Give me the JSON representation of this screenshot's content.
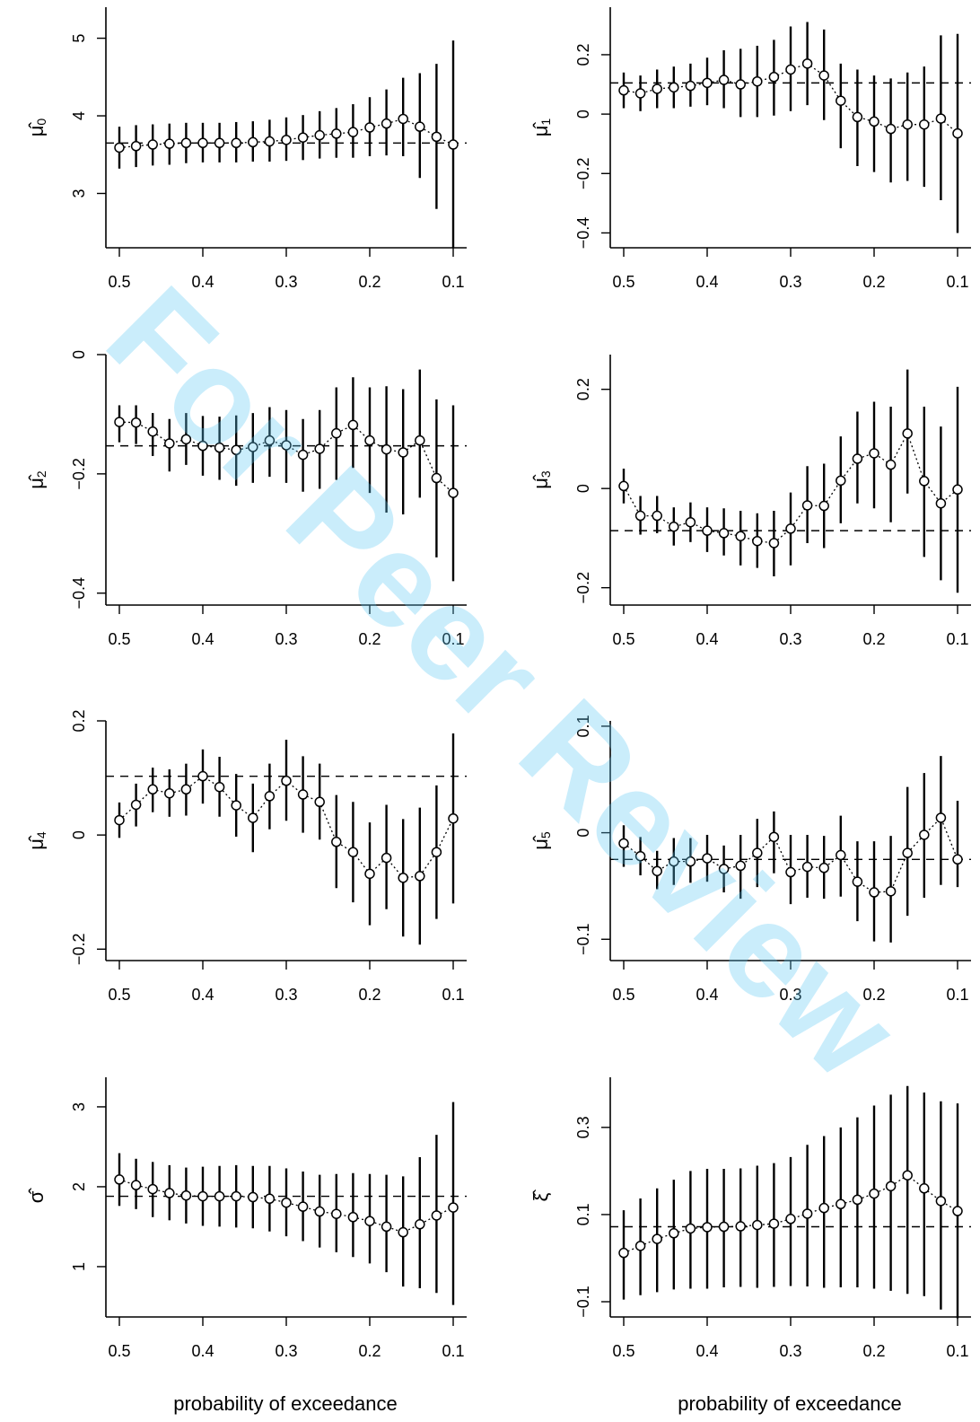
{
  "watermark": "For Peer Review",
  "x_axis_label": "probability of exceedance",
  "x_ticks": [
    0.5,
    0.4,
    0.3,
    0.2,
    0.1
  ],
  "chart_data": [
    {
      "type": "scatter",
      "id": "mu0",
      "ylabel_main": "μ̂",
      "ylabel_sub": "0",
      "xlabel": "",
      "xlim": [
        0.5,
        0.1
      ],
      "ylim": [
        2.3,
        5.4
      ],
      "yticks": [
        3,
        4,
        5
      ],
      "hline": 3.65,
      "x": [
        0.5,
        0.48,
        0.46,
        0.44,
        0.42,
        0.4,
        0.38,
        0.36,
        0.34,
        0.32,
        0.3,
        0.28,
        0.26,
        0.24,
        0.22,
        0.2,
        0.18,
        0.16,
        0.14,
        0.12,
        0.1
      ],
      "y": [
        3.59,
        3.61,
        3.63,
        3.64,
        3.65,
        3.65,
        3.65,
        3.65,
        3.66,
        3.67,
        3.69,
        3.72,
        3.75,
        3.77,
        3.79,
        3.85,
        3.9,
        3.96,
        3.86,
        3.73,
        3.63
      ],
      "lo": [
        3.32,
        3.34,
        3.36,
        3.37,
        3.39,
        3.4,
        3.4,
        3.4,
        3.41,
        3.41,
        3.42,
        3.43,
        3.45,
        3.46,
        3.46,
        3.48,
        3.49,
        3.48,
        3.2,
        2.8,
        2.3
      ],
      "hi": [
        3.86,
        3.88,
        3.89,
        3.9,
        3.91,
        3.91,
        3.91,
        3.92,
        3.93,
        3.95,
        3.98,
        4.01,
        4.06,
        4.1,
        4.15,
        4.24,
        4.34,
        4.49,
        4.55,
        4.67,
        4.97
      ]
    },
    {
      "type": "scatter",
      "id": "mu1",
      "ylabel_main": "μ̂",
      "ylabel_sub": "1",
      "xlabel": "",
      "xlim": [
        0.5,
        0.1
      ],
      "ylim": [
        -0.45,
        0.36
      ],
      "yticks": [
        -0.4,
        -0.2,
        0,
        0.2
      ],
      "hline": 0.105,
      "x": [
        0.5,
        0.48,
        0.46,
        0.44,
        0.42,
        0.4,
        0.38,
        0.36,
        0.34,
        0.32,
        0.3,
        0.28,
        0.26,
        0.24,
        0.22,
        0.2,
        0.18,
        0.16,
        0.14,
        0.12,
        0.1
      ],
      "y": [
        0.08,
        0.07,
        0.085,
        0.09,
        0.095,
        0.105,
        0.115,
        0.1,
        0.11,
        0.125,
        0.15,
        0.17,
        0.13,
        0.045,
        -0.01,
        -0.025,
        -0.05,
        -0.035,
        -0.035,
        -0.015,
        -0.065
      ],
      "lo": [
        0.02,
        0.01,
        0.02,
        0.02,
        0.025,
        0.03,
        0.02,
        -0.01,
        -0.01,
        -0.005,
        0.01,
        0.03,
        -0.02,
        -0.115,
        -0.175,
        -0.195,
        -0.23,
        -0.225,
        -0.245,
        -0.29,
        -0.4
      ],
      "hi": [
        0.14,
        0.13,
        0.15,
        0.16,
        0.17,
        0.19,
        0.215,
        0.22,
        0.23,
        0.25,
        0.295,
        0.31,
        0.285,
        0.17,
        0.15,
        0.13,
        0.12,
        0.14,
        0.16,
        0.265,
        0.27
      ]
    },
    {
      "type": "scatter",
      "id": "mu2",
      "ylabel_main": "μ̂",
      "ylabel_sub": "2",
      "xlabel": "",
      "xlim": [
        0.5,
        0.1
      ],
      "ylim": [
        -0.42,
        0.0
      ],
      "yticks": [
        -0.4,
        -0.2,
        0
      ],
      "hline": -0.153,
      "x": [
        0.5,
        0.48,
        0.46,
        0.44,
        0.42,
        0.4,
        0.38,
        0.36,
        0.34,
        0.32,
        0.3,
        0.28,
        0.26,
        0.24,
        0.22,
        0.2,
        0.18,
        0.16,
        0.14,
        0.12,
        0.1
      ],
      "y": [
        -0.113,
        -0.114,
        -0.129,
        -0.149,
        -0.142,
        -0.153,
        -0.156,
        -0.16,
        -0.155,
        -0.144,
        -0.152,
        -0.168,
        -0.158,
        -0.132,
        -0.118,
        -0.144,
        -0.159,
        -0.164,
        -0.144,
        -0.207,
        -0.232
      ],
      "lo": [
        -0.147,
        -0.15,
        -0.17,
        -0.196,
        -0.185,
        -0.203,
        -0.21,
        -0.22,
        -0.215,
        -0.205,
        -0.215,
        -0.23,
        -0.225,
        -0.21,
        -0.19,
        -0.232,
        -0.265,
        -0.268,
        -0.24,
        -0.34,
        -0.38
      ],
      "hi": [
        -0.085,
        -0.085,
        -0.098,
        -0.108,
        -0.098,
        -0.103,
        -0.104,
        -0.102,
        -0.098,
        -0.088,
        -0.093,
        -0.108,
        -0.093,
        -0.055,
        -0.038,
        -0.055,
        -0.053,
        -0.058,
        -0.025,
        -0.075,
        -0.085
      ]
    },
    {
      "type": "scatter",
      "id": "mu3",
      "ylabel_main": "μ̂",
      "ylabel_sub": "3",
      "xlabel": "",
      "xlim": [
        0.5,
        0.1
      ],
      "ylim": [
        -0.235,
        0.27
      ],
      "yticks": [
        -0.2,
        0,
        0.2
      ],
      "hline": -0.085,
      "x": [
        0.5,
        0.48,
        0.46,
        0.44,
        0.42,
        0.4,
        0.38,
        0.36,
        0.34,
        0.32,
        0.3,
        0.28,
        0.26,
        0.24,
        0.22,
        0.2,
        0.18,
        0.16,
        0.14,
        0.12,
        0.1
      ],
      "y": [
        0.005,
        -0.055,
        -0.055,
        -0.077,
        -0.068,
        -0.085,
        -0.09,
        -0.096,
        -0.106,
        -0.11,
        -0.081,
        -0.034,
        -0.035,
        0.016,
        0.06,
        0.071,
        0.048,
        0.111,
        0.015,
        -0.03,
        -0.002
      ],
      "lo": [
        -0.03,
        -0.093,
        -0.09,
        -0.115,
        -0.108,
        -0.128,
        -0.135,
        -0.155,
        -0.16,
        -0.177,
        -0.155,
        -0.11,
        -0.12,
        -0.07,
        -0.03,
        -0.04,
        -0.068,
        -0.01,
        -0.138,
        -0.185,
        -0.21
      ],
      "hi": [
        0.04,
        -0.015,
        -0.015,
        -0.038,
        -0.028,
        -0.038,
        -0.04,
        -0.045,
        -0.05,
        -0.045,
        -0.008,
        0.045,
        0.05,
        0.105,
        0.155,
        0.175,
        0.165,
        0.24,
        0.165,
        0.125,
        0.205
      ]
    },
    {
      "type": "scatter",
      "id": "mu4",
      "ylabel_main": "μ̂",
      "ylabel_sub": "4",
      "xlabel": "",
      "xlim": [
        0.5,
        0.1
      ],
      "ylim": [
        -0.22,
        0.2
      ],
      "yticks": [
        -0.2,
        0,
        0.2
      ],
      "hline": 0.103,
      "x": [
        0.5,
        0.48,
        0.46,
        0.44,
        0.42,
        0.4,
        0.38,
        0.36,
        0.34,
        0.32,
        0.3,
        0.28,
        0.26,
        0.24,
        0.22,
        0.2,
        0.18,
        0.16,
        0.14,
        0.12,
        0.1
      ],
      "y": [
        0.026,
        0.053,
        0.08,
        0.073,
        0.08,
        0.103,
        0.084,
        0.052,
        0.03,
        0.068,
        0.095,
        0.071,
        0.058,
        -0.012,
        -0.03,
        -0.068,
        -0.04,
        -0.075,
        -0.072,
        -0.03,
        0.029
      ],
      "lo": [
        -0.005,
        0.015,
        0.04,
        0.032,
        0.034,
        0.055,
        0.032,
        -0.003,
        -0.03,
        0.01,
        0.025,
        0.004,
        -0.008,
        -0.093,
        -0.118,
        -0.158,
        -0.13,
        -0.178,
        -0.192,
        -0.147,
        -0.12
      ],
      "hi": [
        0.057,
        0.09,
        0.118,
        0.115,
        0.125,
        0.15,
        0.137,
        0.107,
        0.09,
        0.125,
        0.167,
        0.138,
        0.125,
        0.07,
        0.058,
        0.022,
        0.053,
        0.028,
        0.048,
        0.087,
        0.178
      ]
    },
    {
      "type": "scatter",
      "id": "mu5",
      "ylabel_main": "μ̂",
      "ylabel_sub": "5",
      "xlabel": "",
      "xlim": [
        0.5,
        0.1
      ],
      "ylim": [
        -0.12,
        0.105
      ],
      "yticks": [
        -0.1,
        0,
        0.1
      ],
      "hline": -0.025,
      "x": [
        0.5,
        0.48,
        0.46,
        0.44,
        0.42,
        0.4,
        0.38,
        0.36,
        0.34,
        0.32,
        0.3,
        0.28,
        0.26,
        0.24,
        0.22,
        0.2,
        0.18,
        0.16,
        0.14,
        0.12,
        0.1
      ],
      "y": [
        -0.01,
        -0.022,
        -0.036,
        -0.027,
        -0.027,
        -0.024,
        -0.034,
        -0.031,
        -0.019,
        -0.004,
        -0.037,
        -0.032,
        -0.033,
        -0.021,
        -0.046,
        -0.056,
        -0.055,
        -0.019,
        -0.002,
        0.014,
        -0.025
      ],
      "lo": [
        -0.032,
        -0.04,
        -0.053,
        -0.049,
        -0.047,
        -0.046,
        -0.056,
        -0.062,
        -0.051,
        -0.038,
        -0.067,
        -0.061,
        -0.062,
        -0.06,
        -0.083,
        -0.102,
        -0.103,
        -0.078,
        -0.061,
        -0.049,
        -0.051
      ],
      "hi": [
        0.007,
        -0.004,
        -0.017,
        -0.005,
        -0.005,
        -0.002,
        -0.012,
        -0.002,
        0.013,
        0.02,
        -0.002,
        -0.002,
        -0.003,
        0.016,
        -0.008,
        -0.008,
        -0.003,
        0.043,
        0.056,
        0.072,
        0.03
      ]
    },
    {
      "type": "scatter",
      "id": "sigma",
      "ylabel_main": "σ̂",
      "ylabel_sub": "",
      "xlabel": "probability of exceedance",
      "xlim": [
        0.5,
        0.1
      ],
      "ylim": [
        0.37,
        3.37
      ],
      "yticks": [
        1,
        2,
        3
      ],
      "hline": 1.88,
      "x": [
        0.5,
        0.48,
        0.46,
        0.44,
        0.42,
        0.4,
        0.38,
        0.36,
        0.34,
        0.32,
        0.3,
        0.28,
        0.26,
        0.24,
        0.22,
        0.2,
        0.18,
        0.16,
        0.14,
        0.12,
        0.1
      ],
      "y": [
        2.09,
        2.02,
        1.97,
        1.92,
        1.89,
        1.88,
        1.88,
        1.88,
        1.87,
        1.85,
        1.8,
        1.75,
        1.69,
        1.66,
        1.62,
        1.57,
        1.5,
        1.43,
        1.53,
        1.64,
        1.74
      ],
      "lo": [
        1.76,
        1.72,
        1.62,
        1.58,
        1.54,
        1.51,
        1.5,
        1.49,
        1.48,
        1.44,
        1.38,
        1.32,
        1.24,
        1.18,
        1.12,
        1.04,
        0.93,
        0.75,
        0.73,
        0.67,
        0.52
      ],
      "hi": [
        2.42,
        2.35,
        2.31,
        2.27,
        2.24,
        2.25,
        2.26,
        2.27,
        2.26,
        2.26,
        2.23,
        2.19,
        2.15,
        2.16,
        2.17,
        2.16,
        2.15,
        2.13,
        2.37,
        2.65,
        3.06
      ]
    },
    {
      "type": "scatter",
      "id": "xi",
      "ylabel_main": "ξ̂",
      "ylabel_sub": "",
      "xlabel": "probability of exceedance",
      "xlim": [
        0.5,
        0.1
      ],
      "ylim": [
        -0.135,
        0.415
      ],
      "yticks": [
        -0.1,
        0.1,
        0.3
      ],
      "hline": 0.072,
      "x": [
        0.5,
        0.48,
        0.46,
        0.44,
        0.42,
        0.4,
        0.38,
        0.36,
        0.34,
        0.32,
        0.3,
        0.28,
        0.26,
        0.24,
        0.22,
        0.2,
        0.18,
        0.16,
        0.14,
        0.12,
        0.1
      ],
      "y": [
        0.012,
        0.028,
        0.044,
        0.057,
        0.068,
        0.071,
        0.072,
        0.073,
        0.076,
        0.079,
        0.09,
        0.102,
        0.115,
        0.124,
        0.134,
        0.148,
        0.165,
        0.19,
        0.16,
        0.131,
        0.108
      ],
      "lo": [
        -0.095,
        -0.085,
        -0.078,
        -0.072,
        -0.07,
        -0.07,
        -0.067,
        -0.066,
        -0.068,
        -0.066,
        -0.064,
        -0.065,
        -0.068,
        -0.067,
        -0.067,
        -0.07,
        -0.075,
        -0.082,
        -0.087,
        -0.118,
        -0.138
      ],
      "hi": [
        0.11,
        0.137,
        0.16,
        0.18,
        0.2,
        0.205,
        0.205,
        0.206,
        0.212,
        0.218,
        0.232,
        0.26,
        0.28,
        0.3,
        0.323,
        0.35,
        0.375,
        0.395,
        0.38,
        0.36,
        0.355
      ]
    }
  ]
}
